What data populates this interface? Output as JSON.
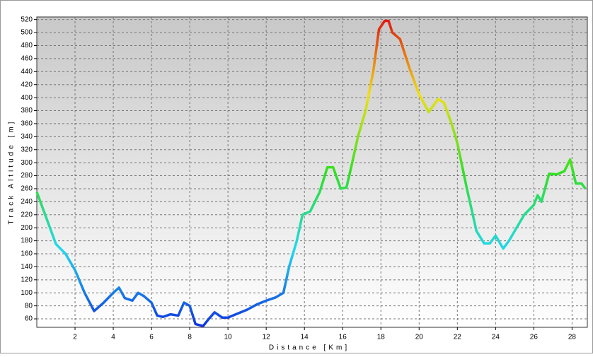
{
  "chart_data": {
    "type": "line",
    "x_label": "Distance [Km]",
    "y_label": "Track Altitude [m]",
    "x": [
      0,
      0.5,
      1,
      1.5,
      2,
      2.5,
      3,
      3.5,
      4,
      4.3,
      4.6,
      5,
      5.3,
      5.6,
      6,
      6.3,
      6.6,
      7,
      7.4,
      7.7,
      8,
      8.3,
      8.7,
      9,
      9.3,
      9.7,
      10,
      10.5,
      11,
      11.5,
      12,
      12.5,
      12.9,
      13.2,
      13.6,
      13.9,
      14.3,
      14.8,
      15.2,
      15.5,
      15.9,
      16.2,
      16.5,
      16.8,
      17.2,
      17.6,
      17.9,
      18.2,
      18.4,
      18.6,
      19,
      19.5,
      20,
      20.5,
      21,
      21.3,
      21.7,
      22,
      22.5,
      23,
      23.4,
      23.7,
      24,
      24.4,
      24.7,
      25,
      25.5,
      26,
      26.2,
      26.4,
      26.8,
      27.2,
      27.6,
      27.9,
      28.2,
      28.5,
      28.7
    ],
    "values": [
      255,
      215,
      175,
      160,
      135,
      100,
      72,
      85,
      100,
      108,
      92,
      88,
      100,
      95,
      85,
      65,
      63,
      67,
      65,
      85,
      80,
      52,
      49,
      60,
      70,
      62,
      62,
      68,
      74,
      82,
      88,
      93,
      100,
      140,
      180,
      220,
      225,
      255,
      293,
      293,
      260,
      262,
      300,
      340,
      380,
      440,
      505,
      518,
      518,
      500,
      490,
      445,
      405,
      378,
      398,
      392,
      360,
      330,
      260,
      195,
      176,
      176,
      188,
      168,
      180,
      195,
      220,
      235,
      250,
      240,
      283,
      282,
      287,
      305,
      268,
      268,
      260
    ],
    "color_scale": [
      "#1030e0",
      "#20d8f0",
      "#30e020",
      "#f0e010",
      "#e01010"
    ],
    "xlim": [
      0,
      28.8
    ],
    "ylim": [
      47,
      524
    ],
    "xticks": [
      2,
      4,
      6,
      8,
      10,
      12,
      14,
      16,
      18,
      20,
      22,
      24,
      26,
      28
    ],
    "yticks": [
      60,
      80,
      100,
      120,
      140,
      160,
      180,
      200,
      220,
      240,
      260,
      280,
      300,
      320,
      340,
      360,
      380,
      400,
      420,
      440,
      460,
      480,
      500,
      520
    ],
    "grid": true
  }
}
